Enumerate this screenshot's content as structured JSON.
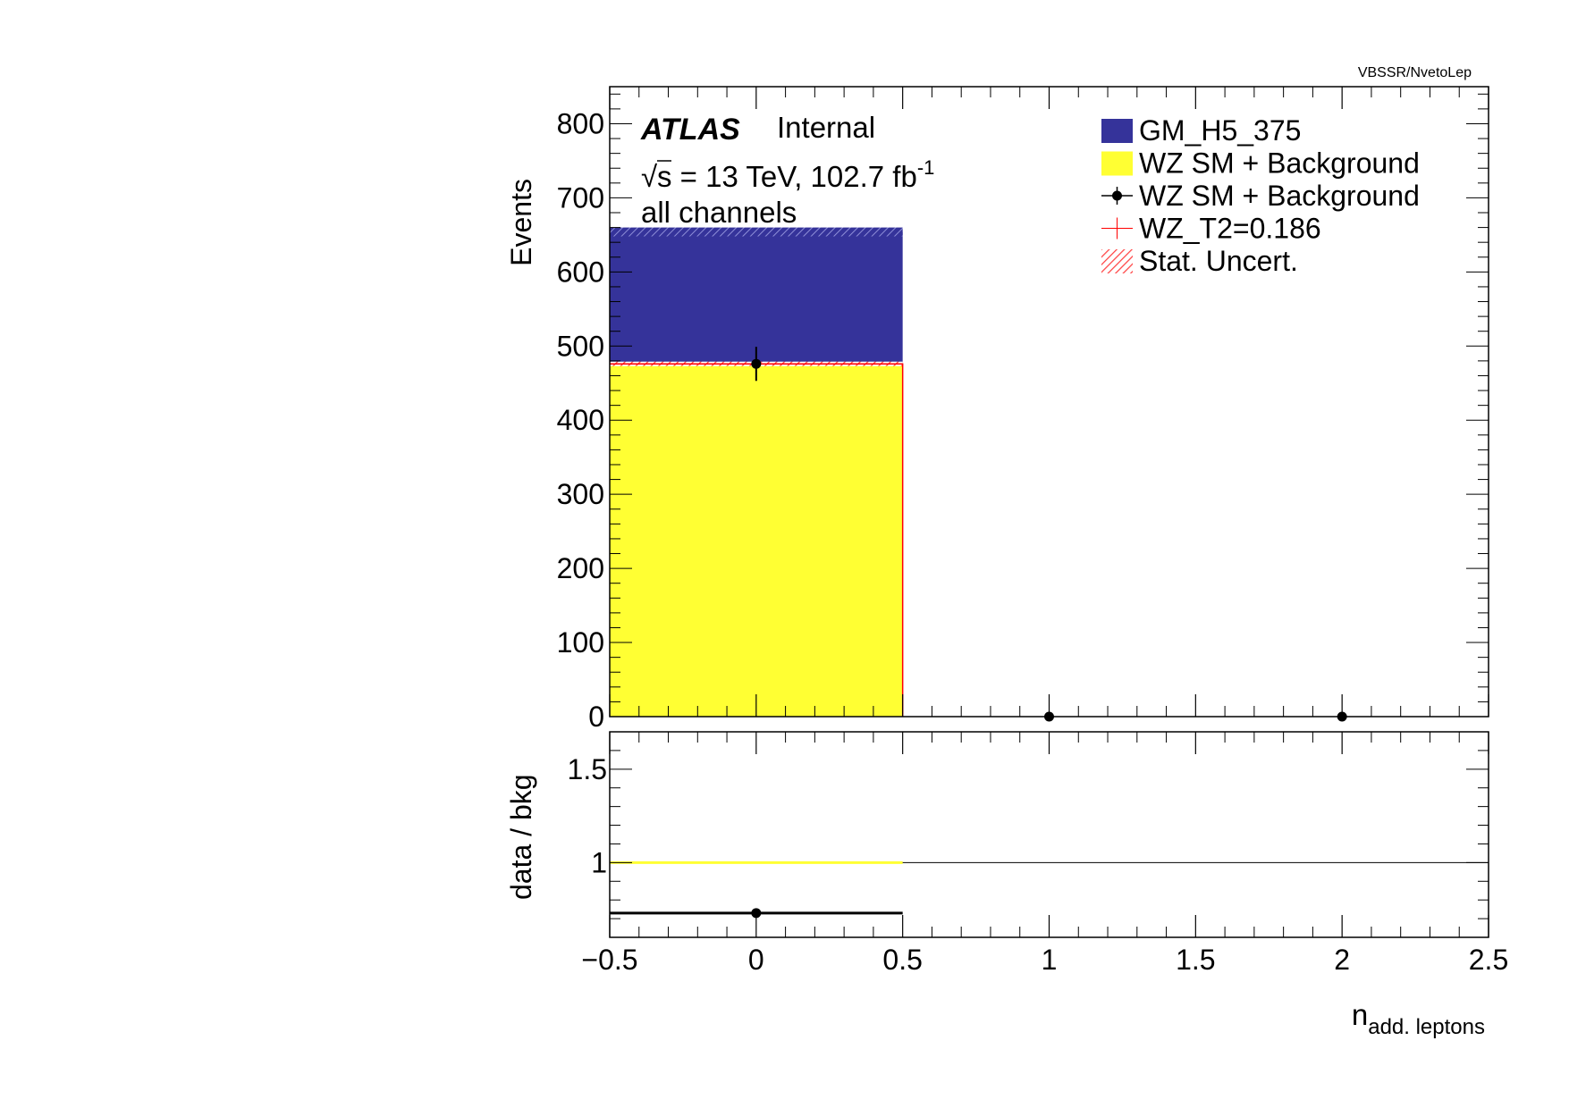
{
  "chart_data": {
    "type": "bar",
    "path_label": "VBSSR/NvetoLep",
    "experiment": "ATLAS",
    "status": "Internal",
    "energy_prefix": "s = 13 TeV, 102.7 fb",
    "energy_exponent": "-1",
    "channel": "all channels",
    "xlabel_main": "n",
    "xlabel_sub": "add. leptons",
    "ylabel_main": "Events",
    "ylabel_ratio": "data / bkg",
    "xlim": [
      -0.5,
      2.5
    ],
    "ylim_main": [
      0,
      850
    ],
    "ylim_ratio": [
      0.6,
      1.7
    ],
    "x_ticks": [
      -0.5,
      0,
      0.5,
      1,
      1.5,
      2,
      2.5
    ],
    "x_tick_labels": [
      "−0.5",
      "0",
      "0.5",
      "1",
      "1.5",
      "2",
      "2.5"
    ],
    "y_ticks_main": [
      0,
      100,
      200,
      300,
      400,
      500,
      600,
      700,
      800
    ],
    "y_tick_labels_main": [
      "0",
      "100",
      "200",
      "300",
      "400",
      "500",
      "600",
      "700",
      "800"
    ],
    "y_ticks_ratio": [
      1,
      1.5
    ],
    "y_tick_labels_ratio": [
      "1",
      "1.5"
    ],
    "bins": [
      {
        "x": 0,
        "lo": -0.5,
        "hi": 0.5,
        "background": 476,
        "signal": 178,
        "stat_uncert": 6
      }
    ],
    "data_points": [
      {
        "x": 0,
        "y": 476,
        "err": 23
      },
      {
        "x": 1,
        "y": 0,
        "err": 0
      },
      {
        "x": 2,
        "y": 0,
        "err": 0
      }
    ],
    "ratio_points": [
      {
        "x": 0,
        "lo": -0.5,
        "hi": 0.5,
        "y": 0.73
      }
    ],
    "ratio_reference": 1,
    "series": [
      {
        "name": "GM_H5_375",
        "color": "#35339a"
      },
      {
        "name": "WZ SM + Background",
        "color": "#ffff33"
      },
      {
        "name": "WZ SM + Background",
        "color": "#000000"
      },
      {
        "name": "WZ_T2=0.186",
        "color": "#ff0000"
      },
      {
        "name": "Stat. Uncert.",
        "color": "#ff4040"
      }
    ],
    "legend_position": "top-right"
  }
}
